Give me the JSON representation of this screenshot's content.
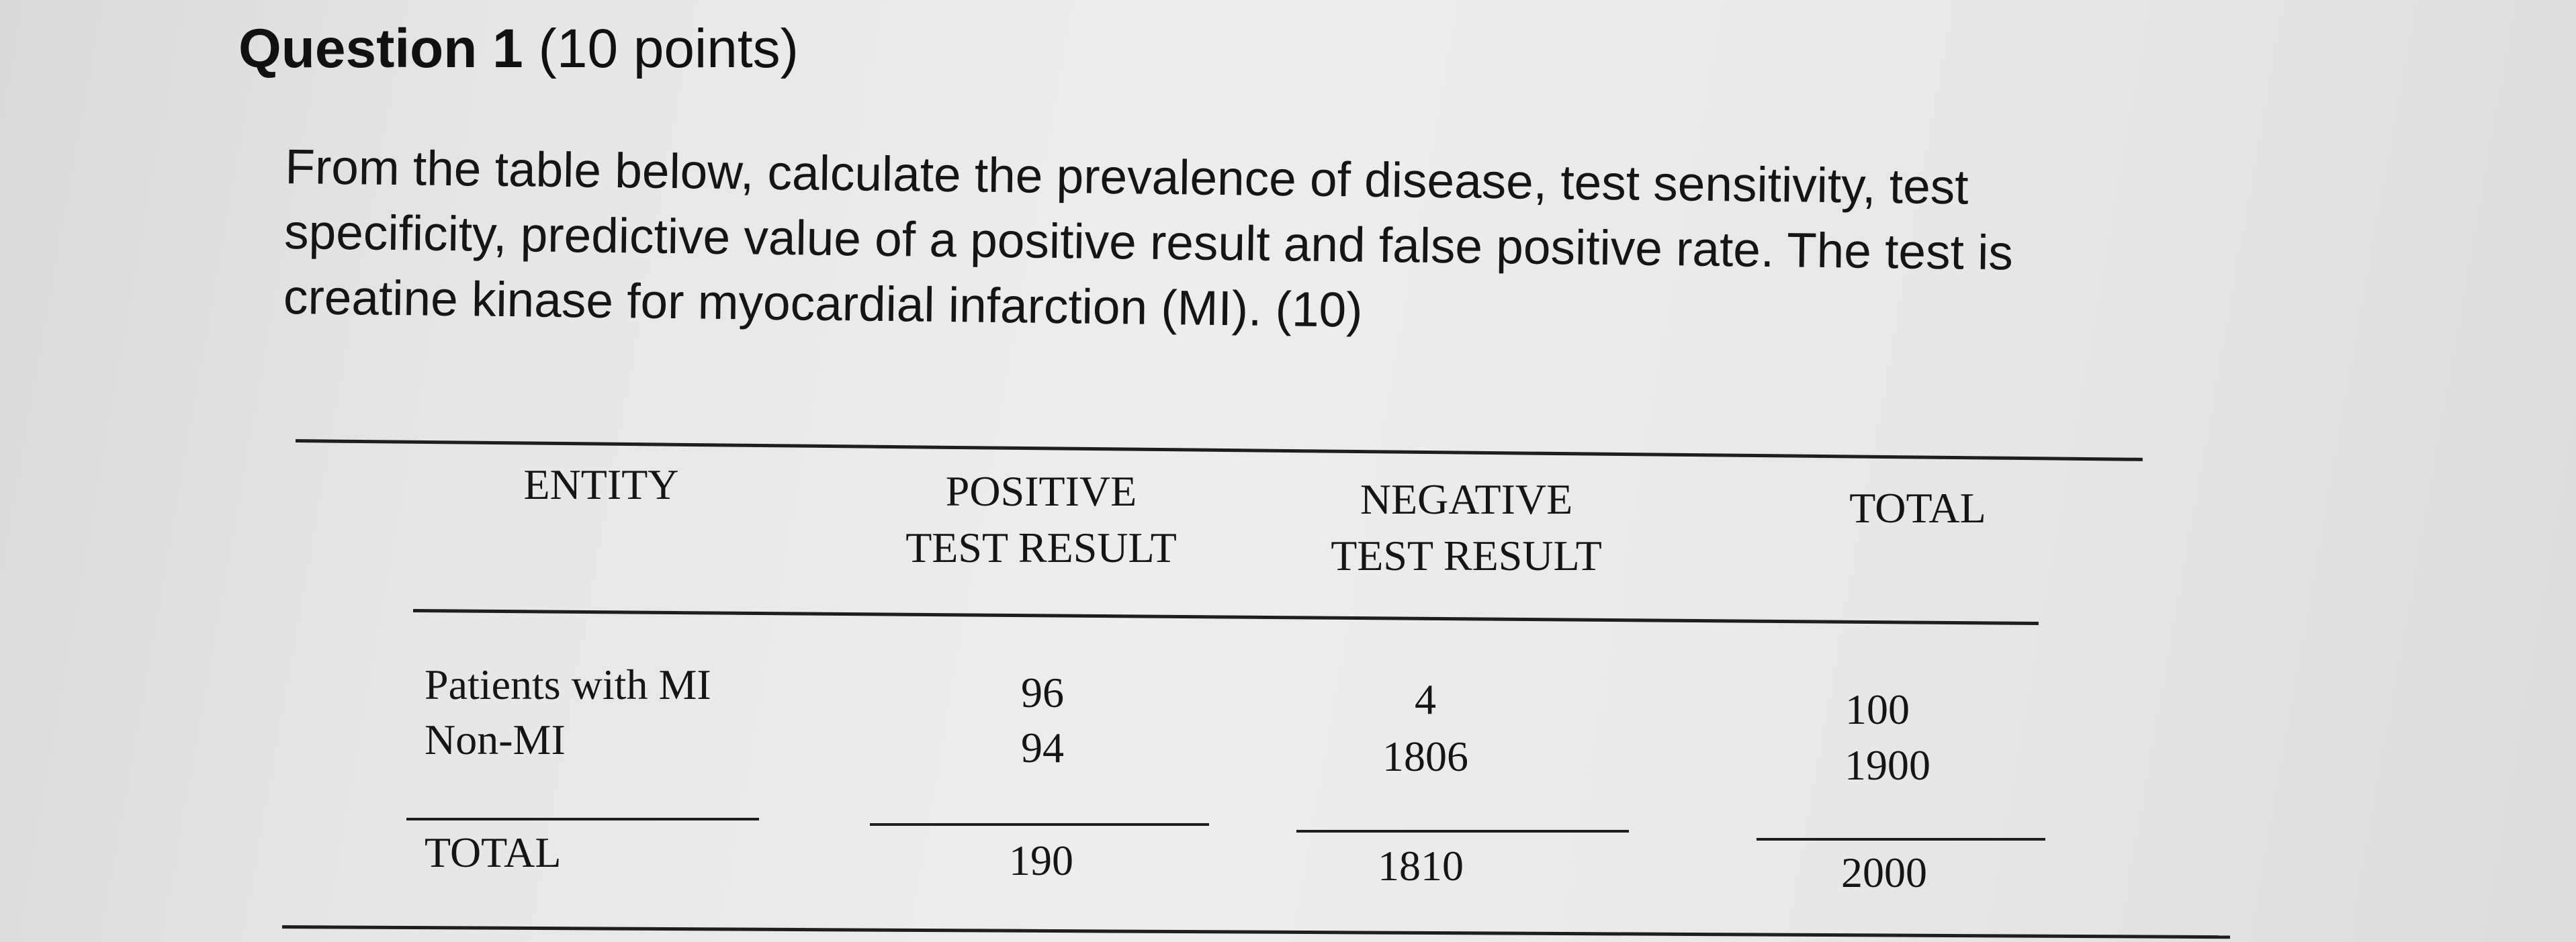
{
  "question": {
    "title": "Question 1",
    "points": "(10 points)",
    "body_lines": [
      "From the table below, calculate the prevalence of disease, test sensitivity, test",
      "specificity, predictive value of a positive result and false positive rate.  The test is",
      "creatine kinase for myocardial infarction (MI). (10)"
    ]
  },
  "table": {
    "headers": {
      "entity": "ENTITY",
      "positive_line1": "POSITIVE",
      "positive_line2": "TEST RESULT",
      "negative_line1": "NEGATIVE",
      "negative_line2": "TEST RESULT",
      "total": "TOTAL"
    },
    "rows": [
      {
        "entity": "Patients with MI",
        "positive": "96",
        "negative": "4",
        "total": "100"
      },
      {
        "entity": "Non-MI",
        "positive": "94",
        "negative": "1806",
        "total": "1900"
      }
    ],
    "totals": {
      "label": "TOTAL",
      "positive": "190",
      "negative": "1810",
      "total": "2000"
    }
  }
}
